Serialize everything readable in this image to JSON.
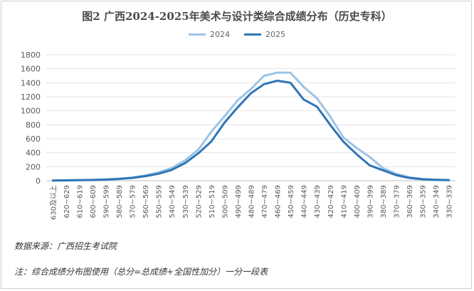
{
  "title": "图2 广西2024-2025年美术与设计类综合成绩分布（历史专科）",
  "source": "数据来源：广西招生考试院",
  "note": "注：综合成绩分布图使用（总分=总成绩+全国性加分）一分一段表",
  "chart_data": {
    "type": "line",
    "title": "图2 广西2024-2025年美术与设计类综合成绩分布（历史专科）",
    "xlabel": "",
    "ylabel": "",
    "ylim": [
      0,
      1800
    ],
    "yticks": [
      0,
      200,
      400,
      600,
      800,
      1000,
      1200,
      1400,
      1600,
      1800
    ],
    "grid": true,
    "legend_position": "top",
    "categories": [
      "630及以上",
      "620~629",
      "610~619",
      "600~609",
      "590~599",
      "580~589",
      "570~579",
      "560~569",
      "550~559",
      "540~549",
      "530~539",
      "520~529",
      "510~519",
      "500~509",
      "490~499",
      "480~489",
      "470~479",
      "460~469",
      "450~459",
      "440~449",
      "430~439",
      "420~429",
      "410~419",
      "400~409",
      "390~399",
      "380~389",
      "370~379",
      "360~369",
      "350~359",
      "340~349",
      "330~339"
    ],
    "series": [
      {
        "name": "2024",
        "color": "#9dc3e6",
        "values": [
          5,
          8,
          10,
          12,
          20,
          30,
          45,
          75,
          120,
          180,
          290,
          440,
          700,
          920,
          1150,
          1310,
          1500,
          1545,
          1545,
          1340,
          1180,
          920,
          620,
          470,
          340,
          180,
          100,
          50,
          25,
          15,
          10
        ]
      },
      {
        "name": "2025",
        "color": "#2e75b6",
        "values": [
          3,
          5,
          8,
          10,
          15,
          25,
          40,
          65,
          100,
          155,
          250,
          390,
          560,
          830,
          1050,
          1250,
          1380,
          1430,
          1400,
          1160,
          1060,
          800,
          560,
          380,
          220,
          150,
          80,
          40,
          20,
          12,
          8
        ]
      }
    ]
  }
}
